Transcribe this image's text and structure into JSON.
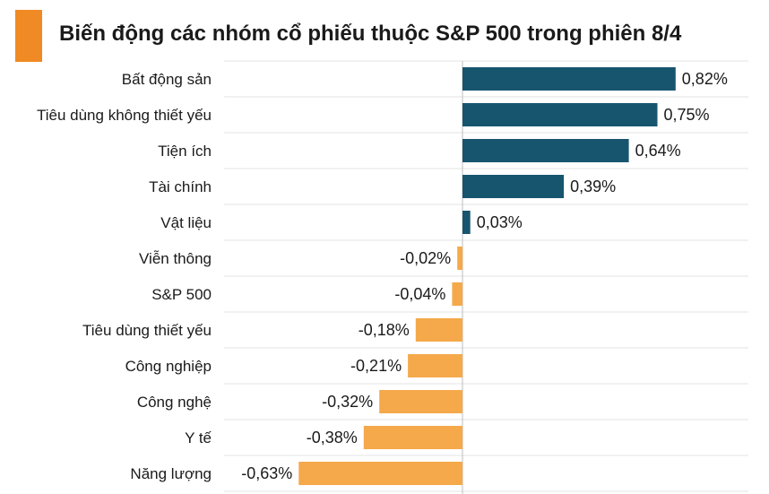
{
  "colors": {
    "title_bar": "#F08A24",
    "positive": "#17556F",
    "negative": "#F5A94A",
    "grid": "#E3E3E3",
    "axis": "#BDBDBD"
  },
  "chart_data": {
    "type": "bar",
    "orientation": "horizontal",
    "title": "Biến động các nhóm cổ phiếu thuộc S&P 500 trong phiên 8/4",
    "categories": [
      "Bất động sản",
      "Tiêu dùng không thiết yếu",
      "Tiện ích",
      "Tài chính",
      "Vật liệu",
      "Viễn thông",
      "S&P 500",
      "Tiêu dùng thiết yếu",
      "Công nghiệp",
      "Công nghệ",
      "Y tế",
      "Năng lượng"
    ],
    "values": [
      0.82,
      0.75,
      0.64,
      0.39,
      0.03,
      -0.02,
      -0.04,
      -0.18,
      -0.21,
      -0.32,
      -0.38,
      -0.63
    ],
    "value_labels": [
      "0,82%",
      "0,75%",
      "0,64%",
      "0,39%",
      "0,03%",
      "-0,02%",
      "-0,04%",
      "-0,18%",
      "-0,21%",
      "-0,32%",
      "-0,38%",
      "-0,63%"
    ],
    "unit": "%",
    "xlim": [
      -0.63,
      0.82
    ],
    "grid": true,
    "legend": "none"
  }
}
